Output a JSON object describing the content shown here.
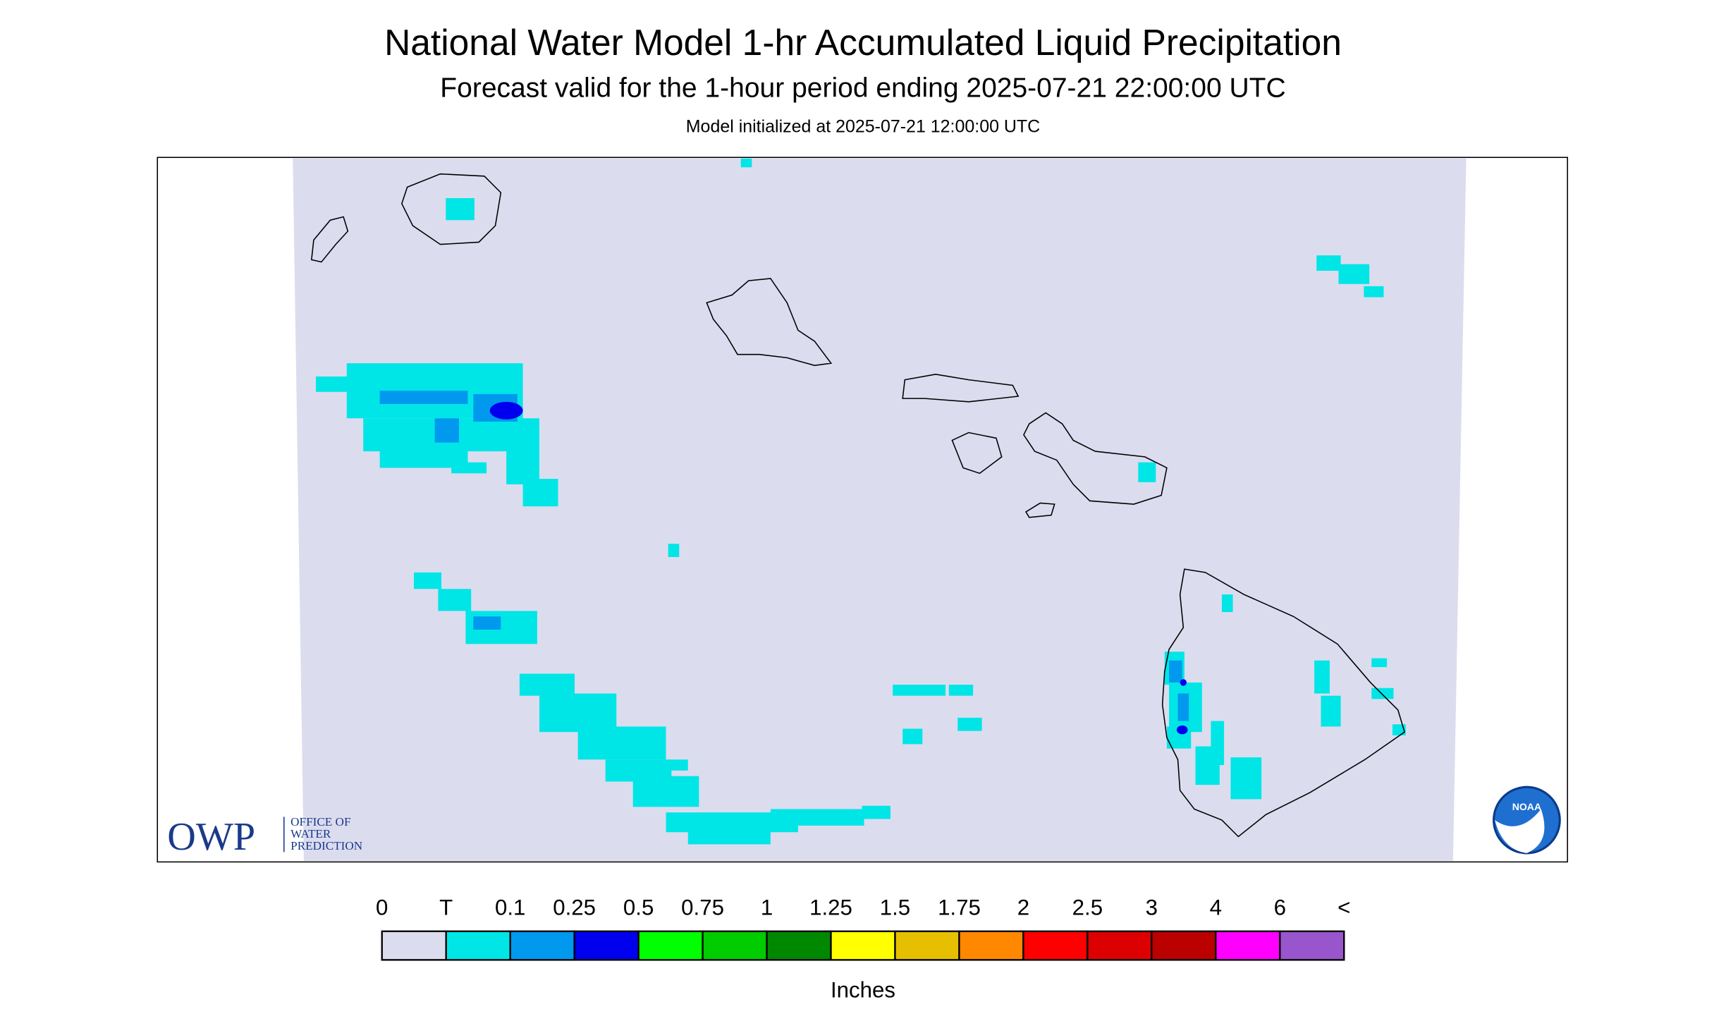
{
  "header": {
    "title": "National Water Model 1-hr Accumulated Liquid Precipitation",
    "subtitle": "Forecast valid for the 1-hour period ending 2025-07-21 22:00:00 UTC",
    "init": "Model initialized at 2025-07-21 12:00:00 UTC"
  },
  "logo": {
    "owp": "OWP",
    "line1": "OFFICE OF",
    "line2": "WATER",
    "line3": "PREDICTION",
    "noaa": "NOAA"
  },
  "legend": {
    "labels": [
      "0",
      "T",
      "0.1",
      "0.25",
      "0.5",
      "0.75",
      "1",
      "1.25",
      "1.5",
      "1.75",
      "2",
      "2.5",
      "3",
      "4",
      "6",
      "<"
    ],
    "colors": [
      "#dcdcef",
      "#00e6e6",
      "#0099ee",
      "#0000ee",
      "#00ff00",
      "#00cc00",
      "#008800",
      "#ffff00",
      "#e6c000",
      "#ff8800",
      "#ff0000",
      "#dd0000",
      "#bb0000",
      "#ff00ff",
      "#9955cc"
    ],
    "unit": "Inches"
  }
}
